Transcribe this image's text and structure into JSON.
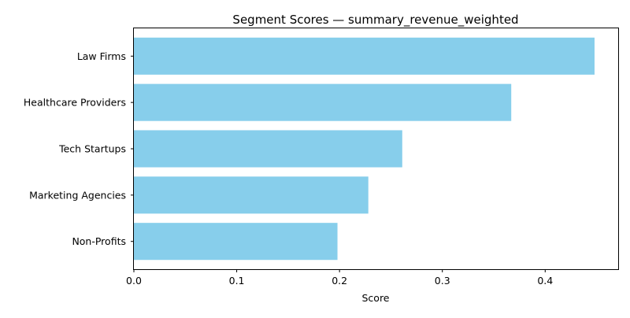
{
  "chart_data": {
    "type": "bar",
    "orientation": "horizontal",
    "title": "Segment Scores — summary_revenue_weighted",
    "xlabel": "Score",
    "ylabel": "",
    "categories": [
      "Law Firms",
      "Healthcare Providers",
      "Tech Startups",
      "Marketing Agencies",
      "Non-Profits"
    ],
    "values": [
      0.448,
      0.367,
      0.261,
      0.228,
      0.198
    ],
    "xlim": [
      0,
      0.471
    ],
    "xticks": [
      0.0,
      0.1,
      0.2,
      0.3,
      0.4
    ],
    "xtick_labels": [
      "0.0",
      "0.1",
      "0.2",
      "0.3",
      "0.4"
    ],
    "bar_color": "#87ceeb",
    "grid": false,
    "legend": "none"
  }
}
